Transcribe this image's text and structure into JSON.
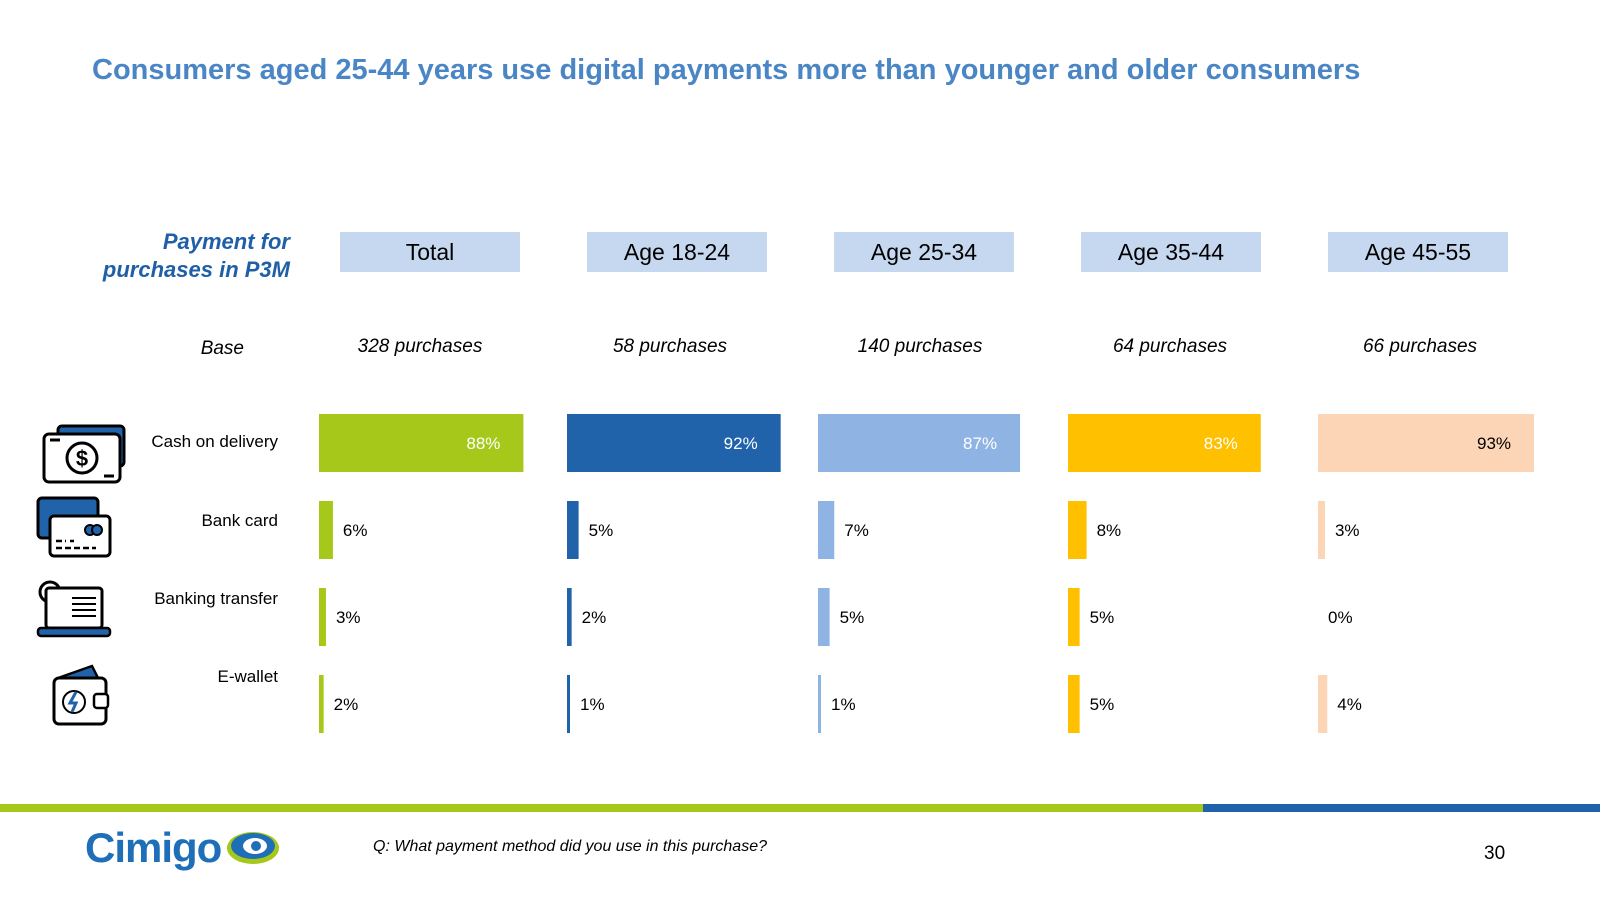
{
  "title": "Consumers aged 25-44 years use digital payments more than younger and older consumers",
  "row_header": "Payment for purchases in P3M",
  "base_label": "Base",
  "question": "Q: What payment method did you use in this purchase?",
  "page_number": "30",
  "logo_text": "Cimigo",
  "categories": [
    {
      "label": "Cash on delivery",
      "icon": "cash-icon"
    },
    {
      "label": "Bank card",
      "icon": "credit-card-icon"
    },
    {
      "label": "Banking transfer",
      "icon": "laptop-transfer-icon"
    },
    {
      "label": "E-wallet",
      "icon": "wallet-icon"
    }
  ],
  "colors": {
    "title": "#4a86c5",
    "header_fill": "#c5d8ef",
    "footer_green": "#a6c81a",
    "footer_blue": "#2063ab"
  },
  "chart_data": {
    "type": "bar",
    "orientation": "horizontal",
    "categories": [
      "Cash on delivery",
      "Bank card",
      "Banking transfer",
      "E-wallet"
    ],
    "series": [
      {
        "name": "Total",
        "base": "328 purchases",
        "color": "#a6c81a",
        "values": [
          88,
          6,
          3,
          2
        ],
        "labels": [
          "88%",
          "6%",
          "3%",
          "2%"
        ]
      },
      {
        "name": "Age 18-24",
        "base": "58 purchases",
        "color": "#2063ab",
        "values": [
          92,
          5,
          2,
          1
        ],
        "labels": [
          "92%",
          "5%",
          "2%",
          "1%"
        ]
      },
      {
        "name": "Age 25-34",
        "base": "140 purchases",
        "color": "#8fb4e3",
        "values": [
          87,
          7,
          5,
          1
        ],
        "labels": [
          "87%",
          "7%",
          "5%",
          "1%"
        ]
      },
      {
        "name": "Age 35-44",
        "base": "64 purchases",
        "color": "#ffc000",
        "values": [
          83,
          8,
          5,
          5
        ],
        "labels": [
          "83%",
          "8%",
          "5%",
          "5%"
        ]
      },
      {
        "name": "Age 45-55",
        "base": "66 purchases",
        "color": "#fbd5b5",
        "values": [
          93,
          3,
          0,
          4
        ],
        "labels": [
          "93%",
          "3%",
          "0%",
          "4%"
        ]
      }
    ],
    "label_colors": [
      [
        "#ffffff",
        "#000000",
        "#000000",
        "#000000"
      ],
      [
        "#ffffff",
        "#000000",
        "#000000",
        "#000000"
      ],
      [
        "#ffffff",
        "#000000",
        "#000000",
        "#000000"
      ],
      [
        "#ffffff",
        "#000000",
        "#000000",
        "#000000"
      ],
      [
        "#000000",
        "#000000",
        "#000000",
        "#000000"
      ]
    ]
  }
}
